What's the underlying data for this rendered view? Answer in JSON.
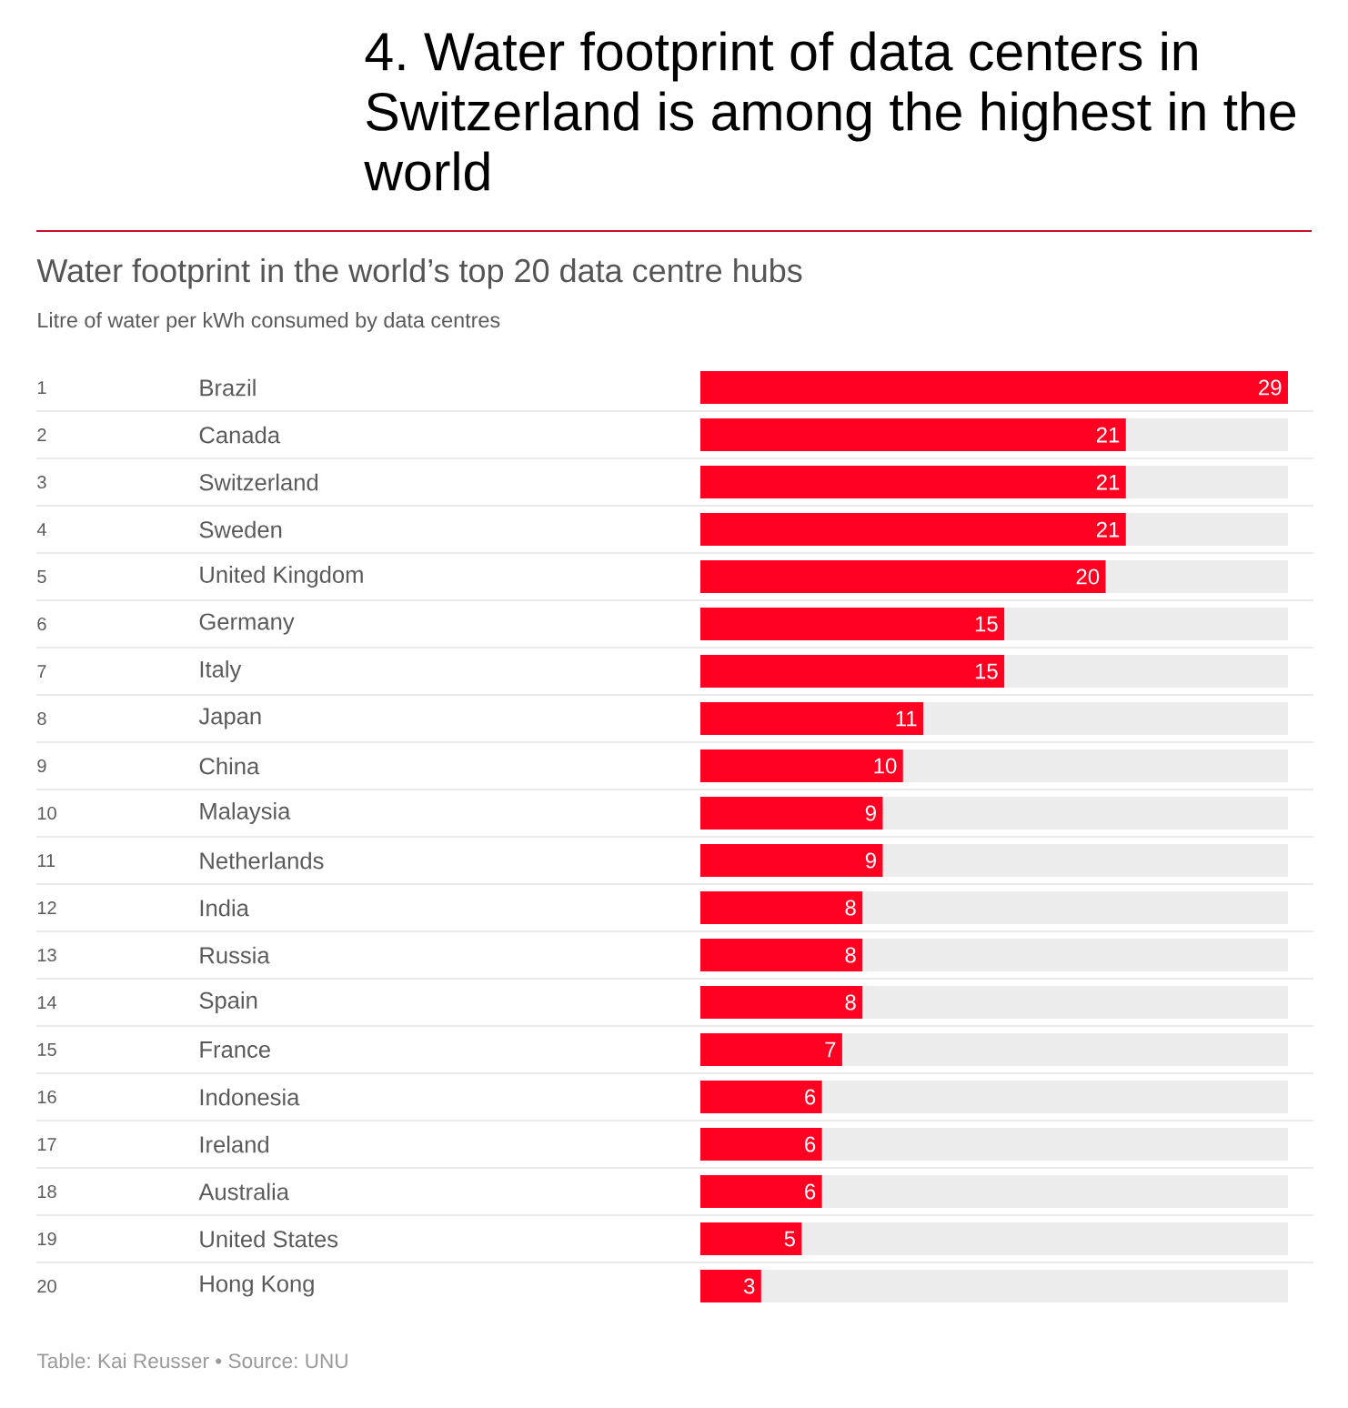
{
  "chart_data": {
    "type": "bar",
    "orientation": "horizontal",
    "title": "4. Water footprint of data centers in Switzerland is among the highest in the world",
    "subtitle": "Water footprint in the world’s top 20 data centre hubs",
    "xlabel": "Litre of water per kWh consumed by data centres",
    "categories": [
      "Brazil",
      "Canada",
      "Switzerland",
      "Sweden",
      "United Kingdom",
      "Germany",
      "Italy",
      "Japan",
      "China",
      "Malaysia",
      "Netherlands",
      "India",
      "Russia",
      "Spain",
      "France",
      "Indonesia",
      "Ireland",
      "Australia",
      "United States",
      "Hong Kong"
    ],
    "values": [
      29,
      21,
      21,
      21,
      20,
      15,
      15,
      11,
      10,
      9,
      9,
      8,
      8,
      8,
      7,
      6,
      6,
      6,
      5,
      3
    ],
    "color": "#ff0022",
    "xlim": [
      0,
      29
    ],
    "data_labels": true,
    "tick_labels": "y",
    "annotations": [
      "1",
      "2",
      "3",
      "4",
      "5",
      "6",
      "7",
      "8",
      "9",
      "10",
      "11",
      "12",
      "13",
      "14",
      "15",
      "16",
      "17",
      "18",
      "19",
      "20",
      "Table: Kai Reusser • Source: UNU"
    ]
  }
}
